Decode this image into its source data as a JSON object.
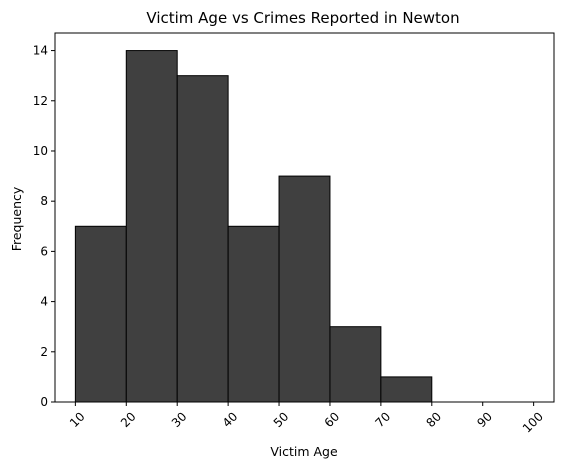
{
  "chart_data": {
    "type": "bar",
    "title": "Victim Age vs Crimes Reported in Newton",
    "xlabel": "Victim Age",
    "ylabel": "Frequency",
    "bins": [
      {
        "start": 10,
        "end": 20,
        "value": 7
      },
      {
        "start": 20,
        "end": 30,
        "value": 14
      },
      {
        "start": 30,
        "end": 40,
        "value": 13
      },
      {
        "start": 40,
        "end": 50,
        "value": 7
      },
      {
        "start": 50,
        "end": 60,
        "value": 9
      },
      {
        "start": 60,
        "end": 70,
        "value": 3
      },
      {
        "start": 70,
        "end": 80,
        "value": 1
      },
      {
        "start": 80,
        "end": 90,
        "value": 0
      },
      {
        "start": 90,
        "end": 100,
        "value": 0
      }
    ],
    "xticks": [
      "10",
      "20",
      "30",
      "40",
      "50",
      "60",
      "70",
      "80",
      "90",
      "100"
    ],
    "yticks": [
      "0",
      "2",
      "4",
      "6",
      "8",
      "10",
      "12",
      "14"
    ],
    "xlim": [
      6,
      104
    ],
    "ylim": [
      0,
      14.7
    ],
    "grid": false,
    "bar_color": "#404040",
    "edge_color": "#000000"
  }
}
